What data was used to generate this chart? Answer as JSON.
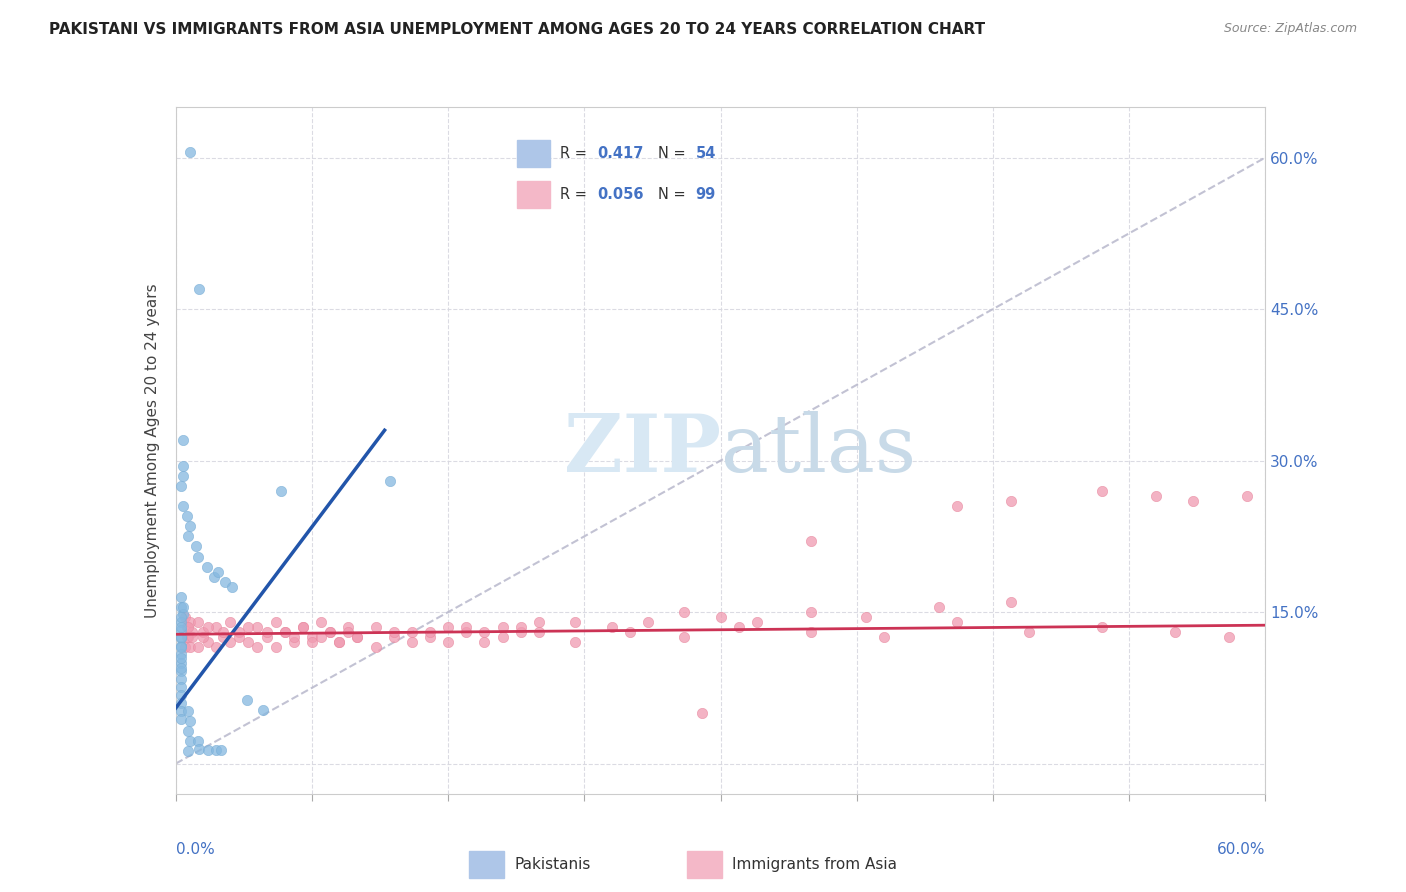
{
  "title": "PAKISTANI VS IMMIGRANTS FROM ASIA UNEMPLOYMENT AMONG AGES 20 TO 24 YEARS CORRELATION CHART",
  "source": "Source: ZipAtlas.com",
  "ylabel": "Unemployment Among Ages 20 to 24 years",
  "xmin": 0.0,
  "xmax": 0.6,
  "ymin": -0.03,
  "ymax": 0.65,
  "pakistani_color": "#85b8e0",
  "pakistani_edge": "#7aaed6",
  "asian_color": "#f09ab0",
  "asian_edge": "#e88aa0",
  "pakistani_line_color": "#2255aa",
  "asian_line_color": "#cc3355",
  "ref_line_color": "#b8b8cc",
  "watermark_zip_color": "#d8e8f4",
  "watermark_atlas_color": "#c8dae8",
  "title_color": "#222222",
  "source_color": "#888888",
  "ylabel_color": "#444444",
  "right_tick_color": "#4472c4",
  "xlabel_color": "#4472c4",
  "grid_color": "#d8d8e0",
  "legend_box_color": "#cccccc",
  "pak_scatter_x": [
    0.008,
    0.013,
    0.004,
    0.004,
    0.004,
    0.003,
    0.004,
    0.006,
    0.008,
    0.007,
    0.011,
    0.012,
    0.017,
    0.021,
    0.023,
    0.027,
    0.031,
    0.003,
    0.003,
    0.004,
    0.003,
    0.003,
    0.003,
    0.003,
    0.003,
    0.003,
    0.003,
    0.003,
    0.003,
    0.003,
    0.003,
    0.003,
    0.003,
    0.004,
    0.003,
    0.003,
    0.003,
    0.003,
    0.003,
    0.003,
    0.007,
    0.008,
    0.007,
    0.008,
    0.007,
    0.012,
    0.013,
    0.018,
    0.022,
    0.025,
    0.118,
    0.058,
    0.039,
    0.048
  ],
  "pak_scatter_y": [
    0.605,
    0.47,
    0.32,
    0.295,
    0.285,
    0.275,
    0.255,
    0.245,
    0.235,
    0.225,
    0.215,
    0.205,
    0.195,
    0.185,
    0.19,
    0.18,
    0.175,
    0.165,
    0.155,
    0.148,
    0.14,
    0.132,
    0.124,
    0.116,
    0.108,
    0.1,
    0.092,
    0.084,
    0.076,
    0.068,
    0.06,
    0.052,
    0.044,
    0.155,
    0.145,
    0.135,
    0.125,
    0.115,
    0.105,
    0.095,
    0.052,
    0.042,
    0.032,
    0.022,
    0.012,
    0.022,
    0.014,
    0.013,
    0.013,
    0.013,
    0.28,
    0.27,
    0.063,
    0.053
  ],
  "asia_scatter_x": [
    0.005,
    0.006,
    0.007,
    0.008,
    0.009,
    0.005,
    0.006,
    0.007,
    0.008,
    0.009,
    0.012,
    0.015,
    0.018,
    0.022,
    0.026,
    0.03,
    0.035,
    0.04,
    0.045,
    0.05,
    0.012,
    0.015,
    0.018,
    0.022,
    0.026,
    0.03,
    0.035,
    0.04,
    0.045,
    0.05,
    0.055,
    0.06,
    0.065,
    0.07,
    0.075,
    0.08,
    0.085,
    0.09,
    0.095,
    0.1,
    0.055,
    0.06,
    0.065,
    0.07,
    0.075,
    0.08,
    0.085,
    0.09,
    0.095,
    0.1,
    0.11,
    0.12,
    0.13,
    0.14,
    0.15,
    0.16,
    0.17,
    0.18,
    0.19,
    0.2,
    0.11,
    0.12,
    0.13,
    0.14,
    0.15,
    0.16,
    0.17,
    0.18,
    0.19,
    0.2,
    0.22,
    0.24,
    0.26,
    0.28,
    0.3,
    0.32,
    0.35,
    0.38,
    0.42,
    0.46,
    0.22,
    0.25,
    0.28,
    0.31,
    0.35,
    0.39,
    0.43,
    0.47,
    0.51,
    0.55,
    0.58,
    0.59,
    0.43,
    0.46,
    0.51,
    0.54,
    0.56,
    0.35,
    0.29
  ],
  "asia_scatter_y": [
    0.145,
    0.135,
    0.125,
    0.14,
    0.13,
    0.115,
    0.125,
    0.135,
    0.115,
    0.125,
    0.14,
    0.13,
    0.12,
    0.135,
    0.125,
    0.14,
    0.13,
    0.12,
    0.135,
    0.125,
    0.115,
    0.125,
    0.135,
    0.115,
    0.13,
    0.12,
    0.125,
    0.135,
    0.115,
    0.13,
    0.14,
    0.13,
    0.12,
    0.135,
    0.125,
    0.14,
    0.13,
    0.12,
    0.135,
    0.125,
    0.115,
    0.13,
    0.125,
    0.135,
    0.12,
    0.125,
    0.13,
    0.12,
    0.13,
    0.125,
    0.135,
    0.125,
    0.13,
    0.125,
    0.135,
    0.13,
    0.12,
    0.135,
    0.13,
    0.14,
    0.115,
    0.13,
    0.12,
    0.13,
    0.12,
    0.135,
    0.13,
    0.125,
    0.135,
    0.13,
    0.14,
    0.135,
    0.14,
    0.15,
    0.145,
    0.14,
    0.15,
    0.145,
    0.155,
    0.16,
    0.12,
    0.13,
    0.125,
    0.135,
    0.13,
    0.125,
    0.14,
    0.13,
    0.135,
    0.13,
    0.125,
    0.265,
    0.255,
    0.26,
    0.27,
    0.265,
    0.26,
    0.22,
    0.05
  ],
  "pak_line_x": [
    0.0,
    0.115
  ],
  "pak_line_y": [
    0.055,
    0.33
  ],
  "asia_line_x": [
    0.0,
    0.6
  ],
  "asia_line_y": [
    0.128,
    0.137
  ],
  "ref_line_x": [
    0.0,
    0.6
  ],
  "ref_line_y": [
    0.0,
    0.6
  ]
}
